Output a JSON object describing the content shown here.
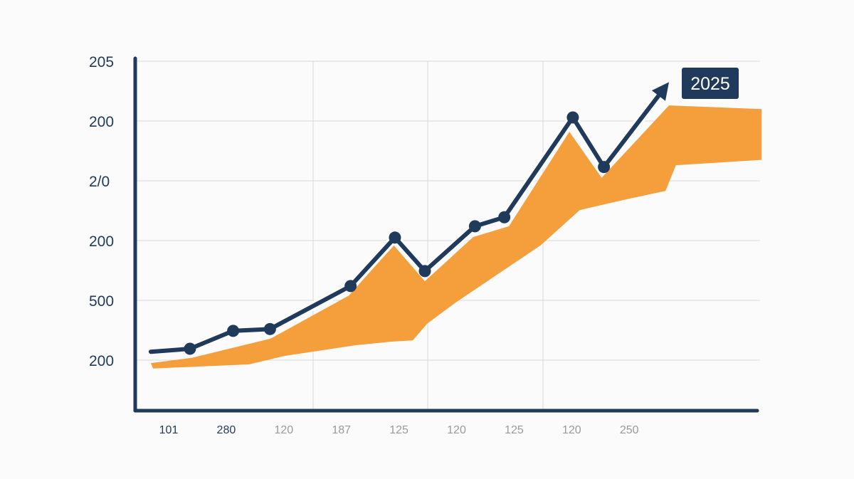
{
  "chart_data": {
    "type": "area",
    "title": "",
    "xlabel": "",
    "ylabel": "",
    "grid": true,
    "y_tick_labels": [
      "200",
      "500",
      "200",
      "2/0",
      "200",
      "205"
    ],
    "x_tick_labels": [
      "101",
      "280",
      "120",
      "187",
      "125",
      "120",
      "125",
      "120",
      "250"
    ],
    "annotation": "2025",
    "colors": {
      "line": "#1f3a5a",
      "area": "#f59e3c",
      "grid": "#d9d9d9",
      "annotation_bg": "#1f3a5a",
      "x_tick_dark": "#1f3a5a",
      "x_tick_light": "#9a9a9a"
    },
    "line_series": {
      "x": [
        -0.31,
        0.37,
        1.12,
        1.76,
        3.16,
        3.93,
        4.45,
        5.32,
        5.83,
        7.02,
        7.56,
        8.69
      ],
      "y": [
        0.14,
        0.19,
        0.49,
        0.52,
        1.24,
        2.05,
        1.49,
        2.24,
        2.39,
        4.06,
        3.23,
        4.65
      ],
      "ends_with_arrow": true
    },
    "area_series": {
      "upper": [
        [
          -0.31,
          -0.05
        ],
        [
          0.41,
          0.04
        ],
        [
          1.77,
          0.36
        ],
        [
          3.13,
          1.08
        ],
        [
          3.91,
          1.92
        ],
        [
          4.45,
          1.32
        ],
        [
          5.29,
          2.06
        ],
        [
          5.91,
          2.24
        ],
        [
          6.96,
          3.82
        ],
        [
          7.52,
          3.05
        ],
        [
          8.69,
          4.26
        ],
        [
          10.3,
          4.2
        ]
      ],
      "lower": [
        [
          10.3,
          3.35
        ],
        [
          8.81,
          3.26
        ],
        [
          8.63,
          2.83
        ],
        [
          7.95,
          2.69
        ],
        [
          7.14,
          2.51
        ],
        [
          6.46,
          1.92
        ],
        [
          5.72,
          1.44
        ],
        [
          4.98,
          0.96
        ],
        [
          4.49,
          0.61
        ],
        [
          4.24,
          0.33
        ],
        [
          3.87,
          0.31
        ],
        [
          3.25,
          0.25
        ],
        [
          2.01,
          0.07
        ],
        [
          1.4,
          -0.07
        ],
        [
          -0.27,
          -0.14
        ]
      ]
    }
  }
}
